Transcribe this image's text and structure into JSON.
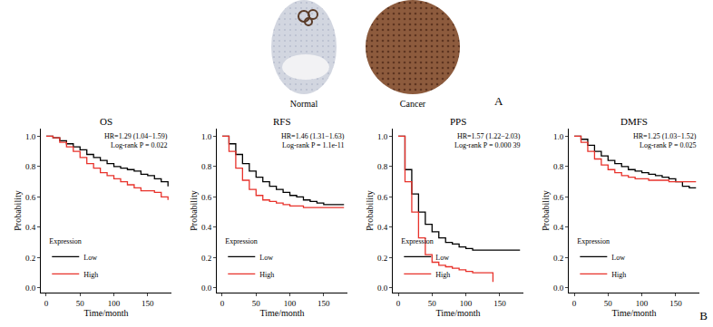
{
  "panel_a": {
    "label": "A",
    "images": [
      "Normal",
      "Cancer"
    ]
  },
  "panel_b": {
    "label": "B"
  },
  "chart_data": [
    {
      "type": "line",
      "title": "OS",
      "x_label": "Time/month",
      "y_label": "Probability",
      "xlim": [
        -8,
        185
      ],
      "xticks": [
        0,
        50,
        100,
        150
      ],
      "ylim": [
        -0.03,
        1.05
      ],
      "yticks": [
        {
          "value": 0,
          "label": "0.0"
        },
        {
          "value": 0.2,
          "label": "0.2"
        },
        {
          "value": 0.4,
          "label": "0.4"
        },
        {
          "value": 0.6,
          "label": "0.6"
        },
        {
          "value": 0.8,
          "label": "0.8"
        },
        {
          "value": 1,
          "label": "1.0"
        }
      ],
      "grid": false,
      "legend": "lower left",
      "legend_title": "Expression",
      "line_style": "step",
      "annotations": [
        "HR=1.29 (1.04−1.59)",
        "Log-rank P = 0.022"
      ],
      "series": [
        {
          "name": "Low",
          "color": "#000000",
          "x": [
            0,
            10,
            20,
            30,
            40,
            50,
            60,
            70,
            80,
            90,
            100,
            110,
            120,
            130,
            140,
            150,
            160,
            170,
            180
          ],
          "values": [
            1.0,
            0.99,
            0.97,
            0.95,
            0.93,
            0.91,
            0.88,
            0.86,
            0.84,
            0.82,
            0.8,
            0.79,
            0.78,
            0.77,
            0.75,
            0.74,
            0.72,
            0.7,
            0.67
          ]
        },
        {
          "name": "High",
          "color": "#e8322b",
          "x": [
            0,
            10,
            20,
            30,
            40,
            50,
            60,
            70,
            80,
            90,
            100,
            110,
            120,
            130,
            140,
            150,
            160,
            170,
            180
          ],
          "values": [
            1.0,
            0.99,
            0.96,
            0.93,
            0.9,
            0.86,
            0.82,
            0.79,
            0.76,
            0.74,
            0.72,
            0.7,
            0.68,
            0.66,
            0.64,
            0.64,
            0.63,
            0.6,
            0.58
          ]
        }
      ]
    },
    {
      "type": "line",
      "title": "RFS",
      "x_label": "Time/month",
      "y_label": "Probability",
      "xlim": [
        -8,
        185
      ],
      "xticks": [
        0,
        50,
        100,
        150
      ],
      "ylim": [
        -0.03,
        1.05
      ],
      "yticks": [
        {
          "value": 0,
          "label": "0.0"
        },
        {
          "value": 0.2,
          "label": "0.2"
        },
        {
          "value": 0.4,
          "label": "0.4"
        },
        {
          "value": 0.6,
          "label": "0.6"
        },
        {
          "value": 0.8,
          "label": "0.8"
        },
        {
          "value": 1,
          "label": "1.0"
        }
      ],
      "grid": false,
      "legend": "lower left",
      "legend_title": "Expression",
      "line_style": "step",
      "annotations": [
        "HR=1.46 (1.31−1.63)",
        "Log-rank P = 1.1e-11"
      ],
      "series": [
        {
          "name": "Low",
          "color": "#000000",
          "x": [
            0,
            10,
            20,
            30,
            40,
            50,
            60,
            70,
            80,
            90,
            100,
            110,
            120,
            130,
            140,
            150,
            160,
            170,
            180
          ],
          "values": [
            1.0,
            0.95,
            0.88,
            0.82,
            0.77,
            0.73,
            0.7,
            0.67,
            0.65,
            0.63,
            0.61,
            0.6,
            0.58,
            0.57,
            0.56,
            0.55,
            0.55,
            0.55,
            0.55
          ]
        },
        {
          "name": "High",
          "color": "#e8322b",
          "x": [
            0,
            10,
            20,
            30,
            40,
            50,
            60,
            70,
            80,
            90,
            100,
            110,
            120,
            130,
            140,
            150,
            160,
            170,
            180
          ],
          "values": [
            1.0,
            0.9,
            0.79,
            0.71,
            0.65,
            0.61,
            0.58,
            0.57,
            0.56,
            0.55,
            0.54,
            0.54,
            0.53,
            0.53,
            0.53,
            0.53,
            0.53,
            0.53,
            0.53
          ]
        }
      ]
    },
    {
      "type": "line",
      "title": "PPS",
      "x_label": "Time/month",
      "y_label": "Probability",
      "xlim": [
        -8,
        185
      ],
      "xticks": [
        0,
        50,
        100,
        150
      ],
      "ylim": [
        -0.03,
        1.05
      ],
      "yticks": [
        {
          "value": 0,
          "label": "0.0"
        },
        {
          "value": 0.2,
          "label": "0.2"
        },
        {
          "value": 0.4,
          "label": "0.4"
        },
        {
          "value": 0.6,
          "label": "0.6"
        },
        {
          "value": 0.8,
          "label": "0.8"
        },
        {
          "value": 1,
          "label": "1.0"
        }
      ],
      "grid": false,
      "legend": "lower left",
      "legend_title": "Expression",
      "line_style": "step",
      "annotations": [
        "HR=1.57 (1.22−2.03)",
        "Log-rank P = 0.000 39"
      ],
      "series": [
        {
          "name": "Low",
          "color": "#000000",
          "x": [
            0,
            10,
            20,
            30,
            40,
            50,
            60,
            70,
            80,
            90,
            100,
            110,
            120,
            130,
            140,
            150,
            160,
            170,
            180
          ],
          "values": [
            1.0,
            0.78,
            0.62,
            0.5,
            0.42,
            0.37,
            0.33,
            0.3,
            0.29,
            0.27,
            0.26,
            0.25,
            0.25,
            0.25,
            0.25,
            0.25,
            0.25,
            0.25,
            0.25
          ]
        },
        {
          "name": "High",
          "color": "#e8322b",
          "x": [
            0,
            10,
            20,
            30,
            40,
            50,
            60,
            70,
            80,
            90,
            100,
            110,
            120,
            130,
            140
          ],
          "values": [
            1.0,
            0.7,
            0.5,
            0.33,
            0.22,
            0.17,
            0.15,
            0.14,
            0.13,
            0.12,
            0.11,
            0.1,
            0.1,
            0.1,
            0.04
          ]
        }
      ]
    },
    {
      "type": "line",
      "title": "DMFS",
      "x_label": "Time/month",
      "y_label": "Probability",
      "xlim": [
        -8,
        185
      ],
      "xticks": [
        0,
        50,
        100,
        150
      ],
      "ylim": [
        -0.03,
        1.05
      ],
      "yticks": [
        {
          "value": 0,
          "label": "0.0"
        },
        {
          "value": 0.2,
          "label": "0.2"
        },
        {
          "value": 0.4,
          "label": "0.4"
        },
        {
          "value": 0.6,
          "label": "0.6"
        },
        {
          "value": 0.8,
          "label": "0.8"
        },
        {
          "value": 1,
          "label": "1.0"
        }
      ],
      "grid": false,
      "legend": "lower left",
      "legend_title": "Expression",
      "line_style": "step",
      "annotations": [
        "HR=1.25 (1.03−1.52)",
        "Log-rank P = 0.025"
      ],
      "series": [
        {
          "name": "Low",
          "color": "#000000",
          "x": [
            0,
            10,
            20,
            30,
            40,
            50,
            60,
            70,
            80,
            90,
            100,
            110,
            120,
            130,
            140,
            150,
            160,
            170,
            180
          ],
          "values": [
            1.0,
            0.98,
            0.94,
            0.9,
            0.87,
            0.84,
            0.82,
            0.8,
            0.78,
            0.77,
            0.76,
            0.75,
            0.74,
            0.73,
            0.72,
            0.7,
            0.67,
            0.66,
            0.66
          ]
        },
        {
          "name": "High",
          "color": "#e8322b",
          "x": [
            0,
            10,
            20,
            30,
            40,
            50,
            60,
            70,
            80,
            90,
            100,
            110,
            120,
            130,
            140,
            150,
            160,
            170,
            180
          ],
          "values": [
            1.0,
            0.96,
            0.9,
            0.85,
            0.81,
            0.78,
            0.76,
            0.74,
            0.73,
            0.72,
            0.72,
            0.71,
            0.71,
            0.71,
            0.7,
            0.7,
            0.7,
            0.7,
            0.7
          ]
        }
      ]
    }
  ]
}
